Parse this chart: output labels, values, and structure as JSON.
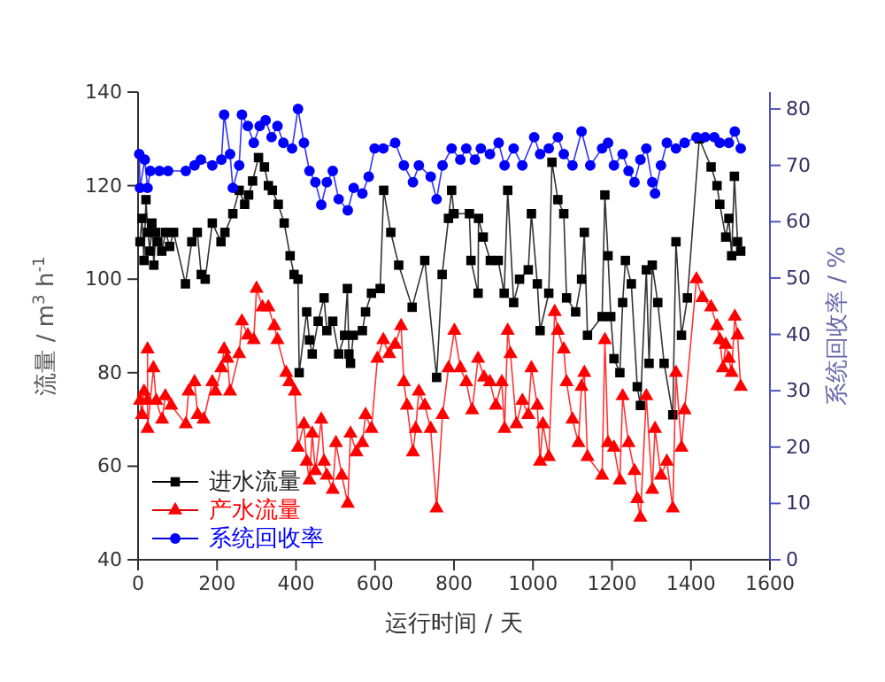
{
  "chart_data": {
    "type": "line",
    "xlabel": "运行时间 / 天",
    "ylabel": "流量 / m$^{3}$ h$^{-1}$",
    "y2label": "系统回收率 / %",
    "xlim": [
      0,
      1600
    ],
    "xticks": [
      0,
      200,
      400,
      600,
      800,
      1000,
      1200,
      1400,
      1600
    ],
    "ylim": [
      40,
      140
    ],
    "yticks": [
      40,
      60,
      80,
      100,
      120,
      140
    ],
    "y2lim": [
      0,
      83
    ],
    "y2ticks": [
      0,
      10,
      20,
      30,
      40,
      50,
      60,
      70,
      80
    ],
    "legend": "bottom left",
    "grid": false,
    "series": [
      {
        "name": "进水流量",
        "color": "#000000",
        "marker": "square",
        "x": [
          5,
          10,
          15,
          20,
          25,
          30,
          35,
          40,
          45,
          50,
          60,
          70,
          80,
          90,
          120,
          136,
          150,
          160,
          170,
          188,
          210,
          220,
          240,
          256,
          270,
          280,
          290,
          305,
          320,
          330,
          340,
          355,
          370,
          385,
          395,
          405,
          408,
          427,
          434,
          441,
          456,
          471,
          478,
          493,
          508,
          523,
          530,
          534,
          538,
          545,
          568,
          576,
          591,
          613,
          622,
          640,
          660,
          694,
          726,
          756,
          770,
          786,
          794,
          800,
          839,
          843,
          861,
          862,
          874,
          892,
          912,
          927,
          936,
          951,
          966,
          988,
          996,
          1011,
          1018,
          1040,
          1048,
          1063,
          1078,
          1085,
          1108,
          1123,
          1130,
          1138,
          1175,
          1182,
          1190,
          1197,
          1205,
          1220,
          1227,
          1234,
          1249,
          1264,
          1272,
          1287,
          1294,
          1302,
          1316,
          1332,
          1354,
          1362,
          1376,
          1391,
          1421,
          1451,
          1466,
          1473,
          1488,
          1496,
          1503,
          1510,
          1518,
          1526
        ],
        "values": [
          108,
          113,
          104,
          117,
          110,
          106,
          112,
          103,
          110,
          108,
          106,
          110,
          107,
          110,
          99,
          108,
          110,
          101,
          100,
          112,
          108,
          110,
          114,
          119,
          116,
          118,
          121,
          126,
          124,
          120,
          119,
          116,
          112,
          105,
          101,
          100,
          80,
          93,
          87,
          84,
          91,
          96,
          89,
          91,
          84,
          88,
          98,
          84,
          82,
          88,
          89,
          93,
          97,
          98,
          119,
          110,
          103,
          94,
          104,
          79,
          101,
          113,
          119,
          114,
          114,
          104,
          97,
          113,
          109,
          104,
          104,
          97,
          119,
          95,
          100,
          102,
          114,
          99,
          89,
          97,
          125,
          117,
          114,
          96,
          93,
          100,
          110,
          88,
          92,
          118,
          105,
          92,
          83,
          80,
          95,
          104,
          99,
          77,
          73,
          102,
          82,
          103,
          95,
          82,
          71,
          108,
          88,
          96,
          130,
          124,
          120,
          116,
          109,
          113,
          105,
          122,
          108,
          106
        ]
      },
      {
        "name": "产水流量",
        "color": "#ff0000",
        "marker": "triangle",
        "x": [
          5,
          10,
          15,
          24,
          24,
          24,
          39,
          46,
          61,
          69,
          84,
          121,
          128,
          143,
          151,
          166,
          188,
          196,
          211,
          218,
          226,
          233,
          256,
          263,
          278,
          293,
          300,
          315,
          330,
          345,
          353,
          375,
          383,
          397,
          405,
          420,
          427,
          434,
          441,
          449,
          464,
          471,
          478,
          493,
          501,
          516,
          531,
          538,
          553,
          568,
          576,
          591,
          606,
          621,
          636,
          651,
          666,
          673,
          681,
          696,
          703,
          711,
          726,
          741,
          756,
          771,
          786,
          801,
          816,
          831,
          846,
          861,
          876,
          891,
          906,
          921,
          928,
          936,
          943,
          958,
          973,
          988,
          996,
          1011,
          1018,
          1025,
          1040,
          1055,
          1063,
          1078,
          1085,
          1100,
          1115,
          1123,
          1130,
          1138,
          1175,
          1182,
          1190,
          1205,
          1220,
          1227,
          1242,
          1257,
          1264,
          1272,
          1287,
          1302,
          1309,
          1324,
          1339,
          1354,
          1362,
          1376,
          1384,
          1414,
          1429,
          1451,
          1466,
          1473,
          1481,
          1488,
          1496,
          1503,
          1511,
          1518,
          1526
        ],
        "values": [
          74,
          71,
          76,
          74,
          85,
          68,
          81,
          74,
          70,
          75,
          73,
          69,
          76,
          78,
          71,
          70,
          78,
          76,
          81,
          85,
          83,
          76,
          84,
          91,
          88,
          87,
          98,
          94,
          94,
          90,
          87,
          80,
          78,
          76,
          64,
          69,
          61,
          57,
          67,
          59,
          70,
          61,
          58,
          55,
          65,
          58,
          52,
          67,
          63,
          65,
          71,
          68,
          83,
          87,
          84,
          86,
          90,
          78,
          73,
          63,
          68,
          76,
          73,
          68,
          51,
          71,
          81,
          89,
          81,
          78,
          72,
          83,
          79,
          78,
          73,
          78,
          68,
          89,
          84,
          69,
          74,
          71,
          81,
          73,
          61,
          69,
          62,
          93,
          89,
          85,
          78,
          70,
          65,
          77,
          80,
          62,
          58,
          87,
          65,
          64,
          57,
          75,
          65,
          59,
          53,
          49,
          75,
          55,
          68,
          58,
          61,
          51,
          80,
          64,
          72,
          100,
          96,
          94,
          90,
          87,
          81,
          86,
          83,
          80,
          92,
          88,
          77
        ]
      },
      {
        "name": "系统回收率",
        "color": "#0000ff",
        "marker": "circle",
        "axis": "y2",
        "x": [
          3,
          5,
          17,
          24,
          31,
          54,
          76,
          121,
          143,
          159,
          188,
          211,
          218,
          233,
          240,
          256,
          263,
          278,
          293,
          308,
          323,
          338,
          353,
          368,
          390,
          405,
          420,
          434,
          449,
          464,
          478,
          493,
          508,
          531,
          546,
          568,
          584,
          599,
          621,
          651,
          673,
          696,
          711,
          741,
          756,
          771,
          794,
          816,
          831,
          853,
          868,
          891,
          913,
          928,
          951,
          973,
          1003,
          1018,
          1040,
          1063,
          1078,
          1100,
          1123,
          1145,
          1175,
          1190,
          1205,
          1227,
          1242,
          1257,
          1272,
          1287,
          1302,
          1309,
          1324,
          1339,
          1362,
          1384,
          1414,
          1436,
          1459,
          1473,
          1496,
          1511,
          1526
        ],
        "values": [
          72,
          66,
          71,
          66,
          69,
          69,
          69,
          69,
          70,
          71,
          70,
          71,
          79,
          72,
          66,
          70,
          79,
          77,
          74,
          77,
          78,
          75,
          77,
          74,
          73,
          80,
          74,
          69,
          67,
          63,
          67,
          69,
          64,
          62,
          66,
          65,
          68,
          73,
          73,
          74,
          70,
          67,
          70,
          68,
          64,
          70,
          73,
          71,
          73,
          71,
          73,
          72,
          74,
          70,
          73,
          70,
          75,
          72,
          73,
          75,
          72,
          70,
          76,
          70,
          73,
          74,
          70,
          72,
          69,
          67,
          71,
          73,
          67,
          65,
          70,
          74,
          73,
          74,
          75,
          75,
          75,
          74,
          74,
          76,
          73
        ]
      }
    ]
  }
}
